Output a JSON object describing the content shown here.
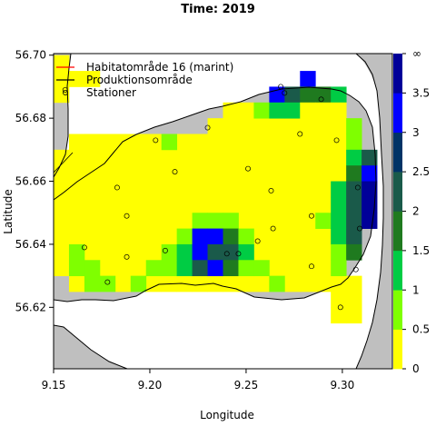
{
  "chart_data": {
    "type": "heatmap",
    "title": "Time: 2019",
    "xlabel": "Longitude",
    "ylabel": "Latitude",
    "xlim": [
      9.15,
      9.326
    ],
    "ylim": [
      56.6005,
      56.7005
    ],
    "x_ticks": [
      9.15,
      9.2,
      9.25,
      9.3
    ],
    "x_tick_labels": [
      "9.15",
      "9.20",
      "9.25",
      "9.30"
    ],
    "y_ticks": [
      56.62,
      56.64,
      56.66,
      56.68,
      56.7
    ],
    "y_tick_labels": [
      "56.62",
      "56.64",
      "56.66",
      "56.68",
      "56.70"
    ],
    "cell_size": {
      "lon": 0.008,
      "lat": 0.005
    },
    "legend": {
      "placement": "top-left",
      "entries": [
        {
          "label": "Habitatområde 16 (marint)",
          "symbol": "line",
          "color": "#ff0000"
        },
        {
          "label": "Produktionsområde",
          "symbol": "line",
          "color": "#000000"
        },
        {
          "label": "Stationer",
          "symbol": "circle",
          "color": "#000000"
        }
      ]
    },
    "colorbar": {
      "tick_labels": [
        "0",
        "0.5",
        "1",
        "1.5",
        "2",
        "2.5",
        "3",
        "3.5",
        "∞"
      ],
      "bins": [
        {
          "from": 0.0,
          "to": 0.25,
          "color": "#ffff00"
        },
        {
          "from": 0.25,
          "to": 0.5,
          "color": "#ffff00"
        },
        {
          "from": 0.5,
          "to": 1.0,
          "color": "#7fff00"
        },
        {
          "from": 1.0,
          "to": 1.5,
          "color": "#00cc44"
        },
        {
          "from": 1.5,
          "to": 2.0,
          "color": "#1f7a1f"
        },
        {
          "from": 2.0,
          "to": 2.5,
          "color": "#1a5a4a"
        },
        {
          "from": 2.5,
          "to": 3.0,
          "color": "#003366"
        },
        {
          "from": 3.0,
          "to": 3.5,
          "color": "#0000ff"
        },
        {
          "from": 3.5,
          "to": 4.0,
          "color": "#000099"
        }
      ]
    },
    "colors": {
      "land": "#bfbfbf",
      "water": "#ffffff",
      "coast": "#000000"
    },
    "cells": [
      {
        "lon": 9.15,
        "lat": 56.695,
        "color": "#ffff00"
      },
      {
        "lon": 9.15,
        "lat": 56.69,
        "color": "#ffff00"
      },
      {
        "lon": 9.15,
        "lat": 56.685,
        "color": "#ffff00"
      },
      {
        "lon": 9.158,
        "lat": 56.69,
        "color": "#ffff00"
      },
      {
        "lon": 9.166,
        "lat": 56.69,
        "color": "#ffff00"
      },
      {
        "lon": 9.278,
        "lat": 56.69,
        "color": "#0000ff"
      },
      {
        "lon": 9.262,
        "lat": 56.685,
        "color": "#0000ff"
      },
      {
        "lon": 9.27,
        "lat": 56.685,
        "color": "#1a5a4a"
      },
      {
        "lon": 9.278,
        "lat": 56.685,
        "color": "#1f7a1f"
      },
      {
        "lon": 9.286,
        "lat": 56.685,
        "color": "#1f7a1f"
      },
      {
        "lon": 9.294,
        "lat": 56.685,
        "color": "#00cc44"
      },
      {
        "lon": 9.254,
        "lat": 56.68,
        "color": "#7fff00"
      },
      {
        "lon": 9.262,
        "lat": 56.68,
        "color": "#00cc44"
      },
      {
        "lon": 9.27,
        "lat": 56.68,
        "color": "#00cc44"
      },
      {
        "lon": 9.278,
        "lat": 56.68,
        "color": "#ffff00"
      },
      {
        "lon": 9.286,
        "lat": 56.68,
        "color": "#ffff00"
      },
      {
        "lon": 9.294,
        "lat": 56.68,
        "color": "#ffff00"
      },
      {
        "lon": 9.206,
        "lat": 56.67,
        "color": "#7fff00"
      },
      {
        "lon": 9.302,
        "lat": 56.675,
        "color": "#7fff00"
      },
      {
        "lon": 9.302,
        "lat": 56.67,
        "color": "#7fff00"
      },
      {
        "lon": 9.302,
        "lat": 56.665,
        "color": "#00cc44"
      },
      {
        "lon": 9.31,
        "lat": 56.665,
        "color": "#1a5a4a"
      },
      {
        "lon": 9.302,
        "lat": 56.66,
        "color": "#1f7a1f"
      },
      {
        "lon": 9.31,
        "lat": 56.66,
        "color": "#0000ff"
      },
      {
        "lon": 9.294,
        "lat": 56.655,
        "color": "#00cc44"
      },
      {
        "lon": 9.302,
        "lat": 56.655,
        "color": "#1a5a4a"
      },
      {
        "lon": 9.31,
        "lat": 56.655,
        "color": "#000099"
      },
      {
        "lon": 9.294,
        "lat": 56.65,
        "color": "#00cc44"
      },
      {
        "lon": 9.302,
        "lat": 56.65,
        "color": "#1a5a4a"
      },
      {
        "lon": 9.31,
        "lat": 56.65,
        "color": "#000099"
      },
      {
        "lon": 9.286,
        "lat": 56.645,
        "color": "#7fff00"
      },
      {
        "lon": 9.294,
        "lat": 56.645,
        "color": "#00cc44"
      },
      {
        "lon": 9.302,
        "lat": 56.645,
        "color": "#1a5a4a"
      },
      {
        "lon": 9.31,
        "lat": 56.645,
        "color": "#000099"
      },
      {
        "lon": 9.294,
        "lat": 56.64,
        "color": "#00cc44"
      },
      {
        "lon": 9.302,
        "lat": 56.64,
        "color": "#1a5a4a"
      },
      {
        "lon": 9.294,
        "lat": 56.635,
        "color": "#7fff00"
      },
      {
        "lon": 9.302,
        "lat": 56.635,
        "color": "#1f7a1f"
      },
      {
        "lon": 9.294,
        "lat": 56.63,
        "color": "#7fff00"
      },
      {
        "lon": 9.222,
        "lat": 56.645,
        "color": "#7fff00"
      },
      {
        "lon": 9.23,
        "lat": 56.645,
        "color": "#7fff00"
      },
      {
        "lon": 9.238,
        "lat": 56.645,
        "color": "#7fff00"
      },
      {
        "lon": 9.214,
        "lat": 56.64,
        "color": "#7fff00"
      },
      {
        "lon": 9.222,
        "lat": 56.64,
        "color": "#0000ff"
      },
      {
        "lon": 9.23,
        "lat": 56.64,
        "color": "#0000ff"
      },
      {
        "lon": 9.238,
        "lat": 56.64,
        "color": "#1f7a1f"
      },
      {
        "lon": 9.246,
        "lat": 56.64,
        "color": "#7fff00"
      },
      {
        "lon": 9.206,
        "lat": 56.635,
        "color": "#7fff00"
      },
      {
        "lon": 9.214,
        "lat": 56.635,
        "color": "#00cc44"
      },
      {
        "lon": 9.222,
        "lat": 56.635,
        "color": "#0000ff"
      },
      {
        "lon": 9.23,
        "lat": 56.635,
        "color": "#1a5a4a"
      },
      {
        "lon": 9.238,
        "lat": 56.635,
        "color": "#1a5a4a"
      },
      {
        "lon": 9.246,
        "lat": 56.635,
        "color": "#00cc44"
      },
      {
        "lon": 9.198,
        "lat": 56.63,
        "color": "#7fff00"
      },
      {
        "lon": 9.206,
        "lat": 56.63,
        "color": "#7fff00"
      },
      {
        "lon": 9.214,
        "lat": 56.63,
        "color": "#00cc44"
      },
      {
        "lon": 9.222,
        "lat": 56.63,
        "color": "#1a5a4a"
      },
      {
        "lon": 9.23,
        "lat": 56.63,
        "color": "#0000ff"
      },
      {
        "lon": 9.238,
        "lat": 56.63,
        "color": "#1f7a1f"
      },
      {
        "lon": 9.246,
        "lat": 56.63,
        "color": "#7fff00"
      },
      {
        "lon": 9.254,
        "lat": 56.63,
        "color": "#7fff00"
      },
      {
        "lon": 9.262,
        "lat": 56.625,
        "color": "#7fff00"
      },
      {
        "lon": 9.158,
        "lat": 56.635,
        "color": "#7fff00"
      },
      {
        "lon": 9.158,
        "lat": 56.63,
        "color": "#7fff00"
      },
      {
        "lon": 9.166,
        "lat": 56.63,
        "color": "#7fff00"
      },
      {
        "lon": 9.166,
        "lat": 56.625,
        "color": "#7fff00"
      },
      {
        "lon": 9.174,
        "lat": 56.625,
        "color": "#7fff00"
      },
      {
        "lon": 9.19,
        "lat": 56.625,
        "color": "#7fff00"
      }
    ],
    "stations": [
      {
        "lon": 9.156,
        "lat": 56.689
      },
      {
        "lon": 9.268,
        "lat": 56.69
      },
      {
        "lon": 9.27,
        "lat": 56.688
      },
      {
        "lon": 9.289,
        "lat": 56.686
      },
      {
        "lon": 9.23,
        "lat": 56.677
      },
      {
        "lon": 9.203,
        "lat": 56.673
      },
      {
        "lon": 9.278,
        "lat": 56.675
      },
      {
        "lon": 9.297,
        "lat": 56.673
      },
      {
        "lon": 9.213,
        "lat": 56.663
      },
      {
        "lon": 9.251,
        "lat": 56.664
      },
      {
        "lon": 9.183,
        "lat": 56.658
      },
      {
        "lon": 9.263,
        "lat": 56.657
      },
      {
        "lon": 9.308,
        "lat": 56.658
      },
      {
        "lon": 9.188,
        "lat": 56.649
      },
      {
        "lon": 9.284,
        "lat": 56.649
      },
      {
        "lon": 9.264,
        "lat": 56.645
      },
      {
        "lon": 9.256,
        "lat": 56.641
      },
      {
        "lon": 9.309,
        "lat": 56.645
      },
      {
        "lon": 9.166,
        "lat": 56.639
      },
      {
        "lon": 9.208,
        "lat": 56.638
      },
      {
        "lon": 9.188,
        "lat": 56.636
      },
      {
        "lon": 9.24,
        "lat": 56.637
      },
      {
        "lon": 9.246,
        "lat": 56.637
      },
      {
        "lon": 9.284,
        "lat": 56.633
      },
      {
        "lon": 9.307,
        "lat": 56.632
      },
      {
        "lon": 9.178,
        "lat": 56.628
      },
      {
        "lon": 9.299,
        "lat": 56.62
      }
    ]
  }
}
